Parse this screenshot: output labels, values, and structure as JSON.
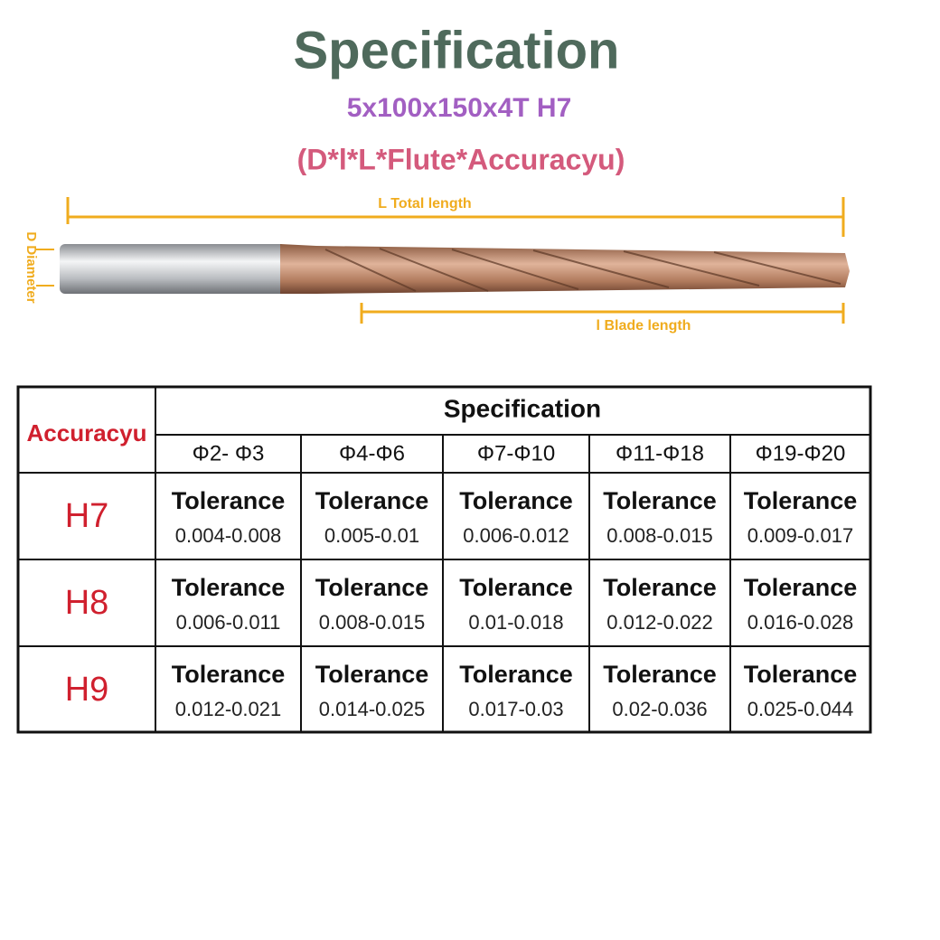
{
  "header": {
    "title": "Specification",
    "model": "5x100x150x4T H7",
    "format": "(D*l*L*Flute*Accuracyu)"
  },
  "diagram": {
    "total_length": "L Total length",
    "diameter": "D Diameter",
    "blade_length": "l  Blade length"
  },
  "table": {
    "corner": "Accuracyu",
    "group_header": "Specification",
    "columns": [
      "Φ2- Φ3",
      "Φ4-Φ6",
      "Φ7-Φ10",
      "Φ11-Φ18",
      "Φ19-Φ20"
    ],
    "rows": [
      {
        "label": "H7",
        "cells": [
          {
            "name": "Tolerance",
            "value": "0.004-0.008"
          },
          {
            "name": "Tolerance",
            "value": "0.005-0.01"
          },
          {
            "name": "Tolerance",
            "value": "0.006-0.012"
          },
          {
            "name": "Tolerance",
            "value": "0.008-0.015"
          },
          {
            "name": "Tolerance",
            "value": "0.009-0.017"
          }
        ]
      },
      {
        "label": "H8",
        "cells": [
          {
            "name": "Tolerance",
            "value": "0.006-0.011"
          },
          {
            "name": "Tolerance",
            "value": "0.008-0.015"
          },
          {
            "name": "Tolerance",
            "value": "0.01-0.018"
          },
          {
            "name": "Tolerance",
            "value": "0.012-0.022"
          },
          {
            "name": "Tolerance",
            "value": "0.016-0.028"
          }
        ]
      },
      {
        "label": "H9",
        "cells": [
          {
            "name": "Tolerance",
            "value": "0.012-0.021"
          },
          {
            "name": "Tolerance",
            "value": "0.014-0.025"
          },
          {
            "name": "Tolerance",
            "value": "0.017-0.03"
          },
          {
            "name": "Tolerance",
            "value": "0.02-0.036"
          },
          {
            "name": "Tolerance",
            "value": "0.025-0.044"
          }
        ]
      }
    ]
  }
}
